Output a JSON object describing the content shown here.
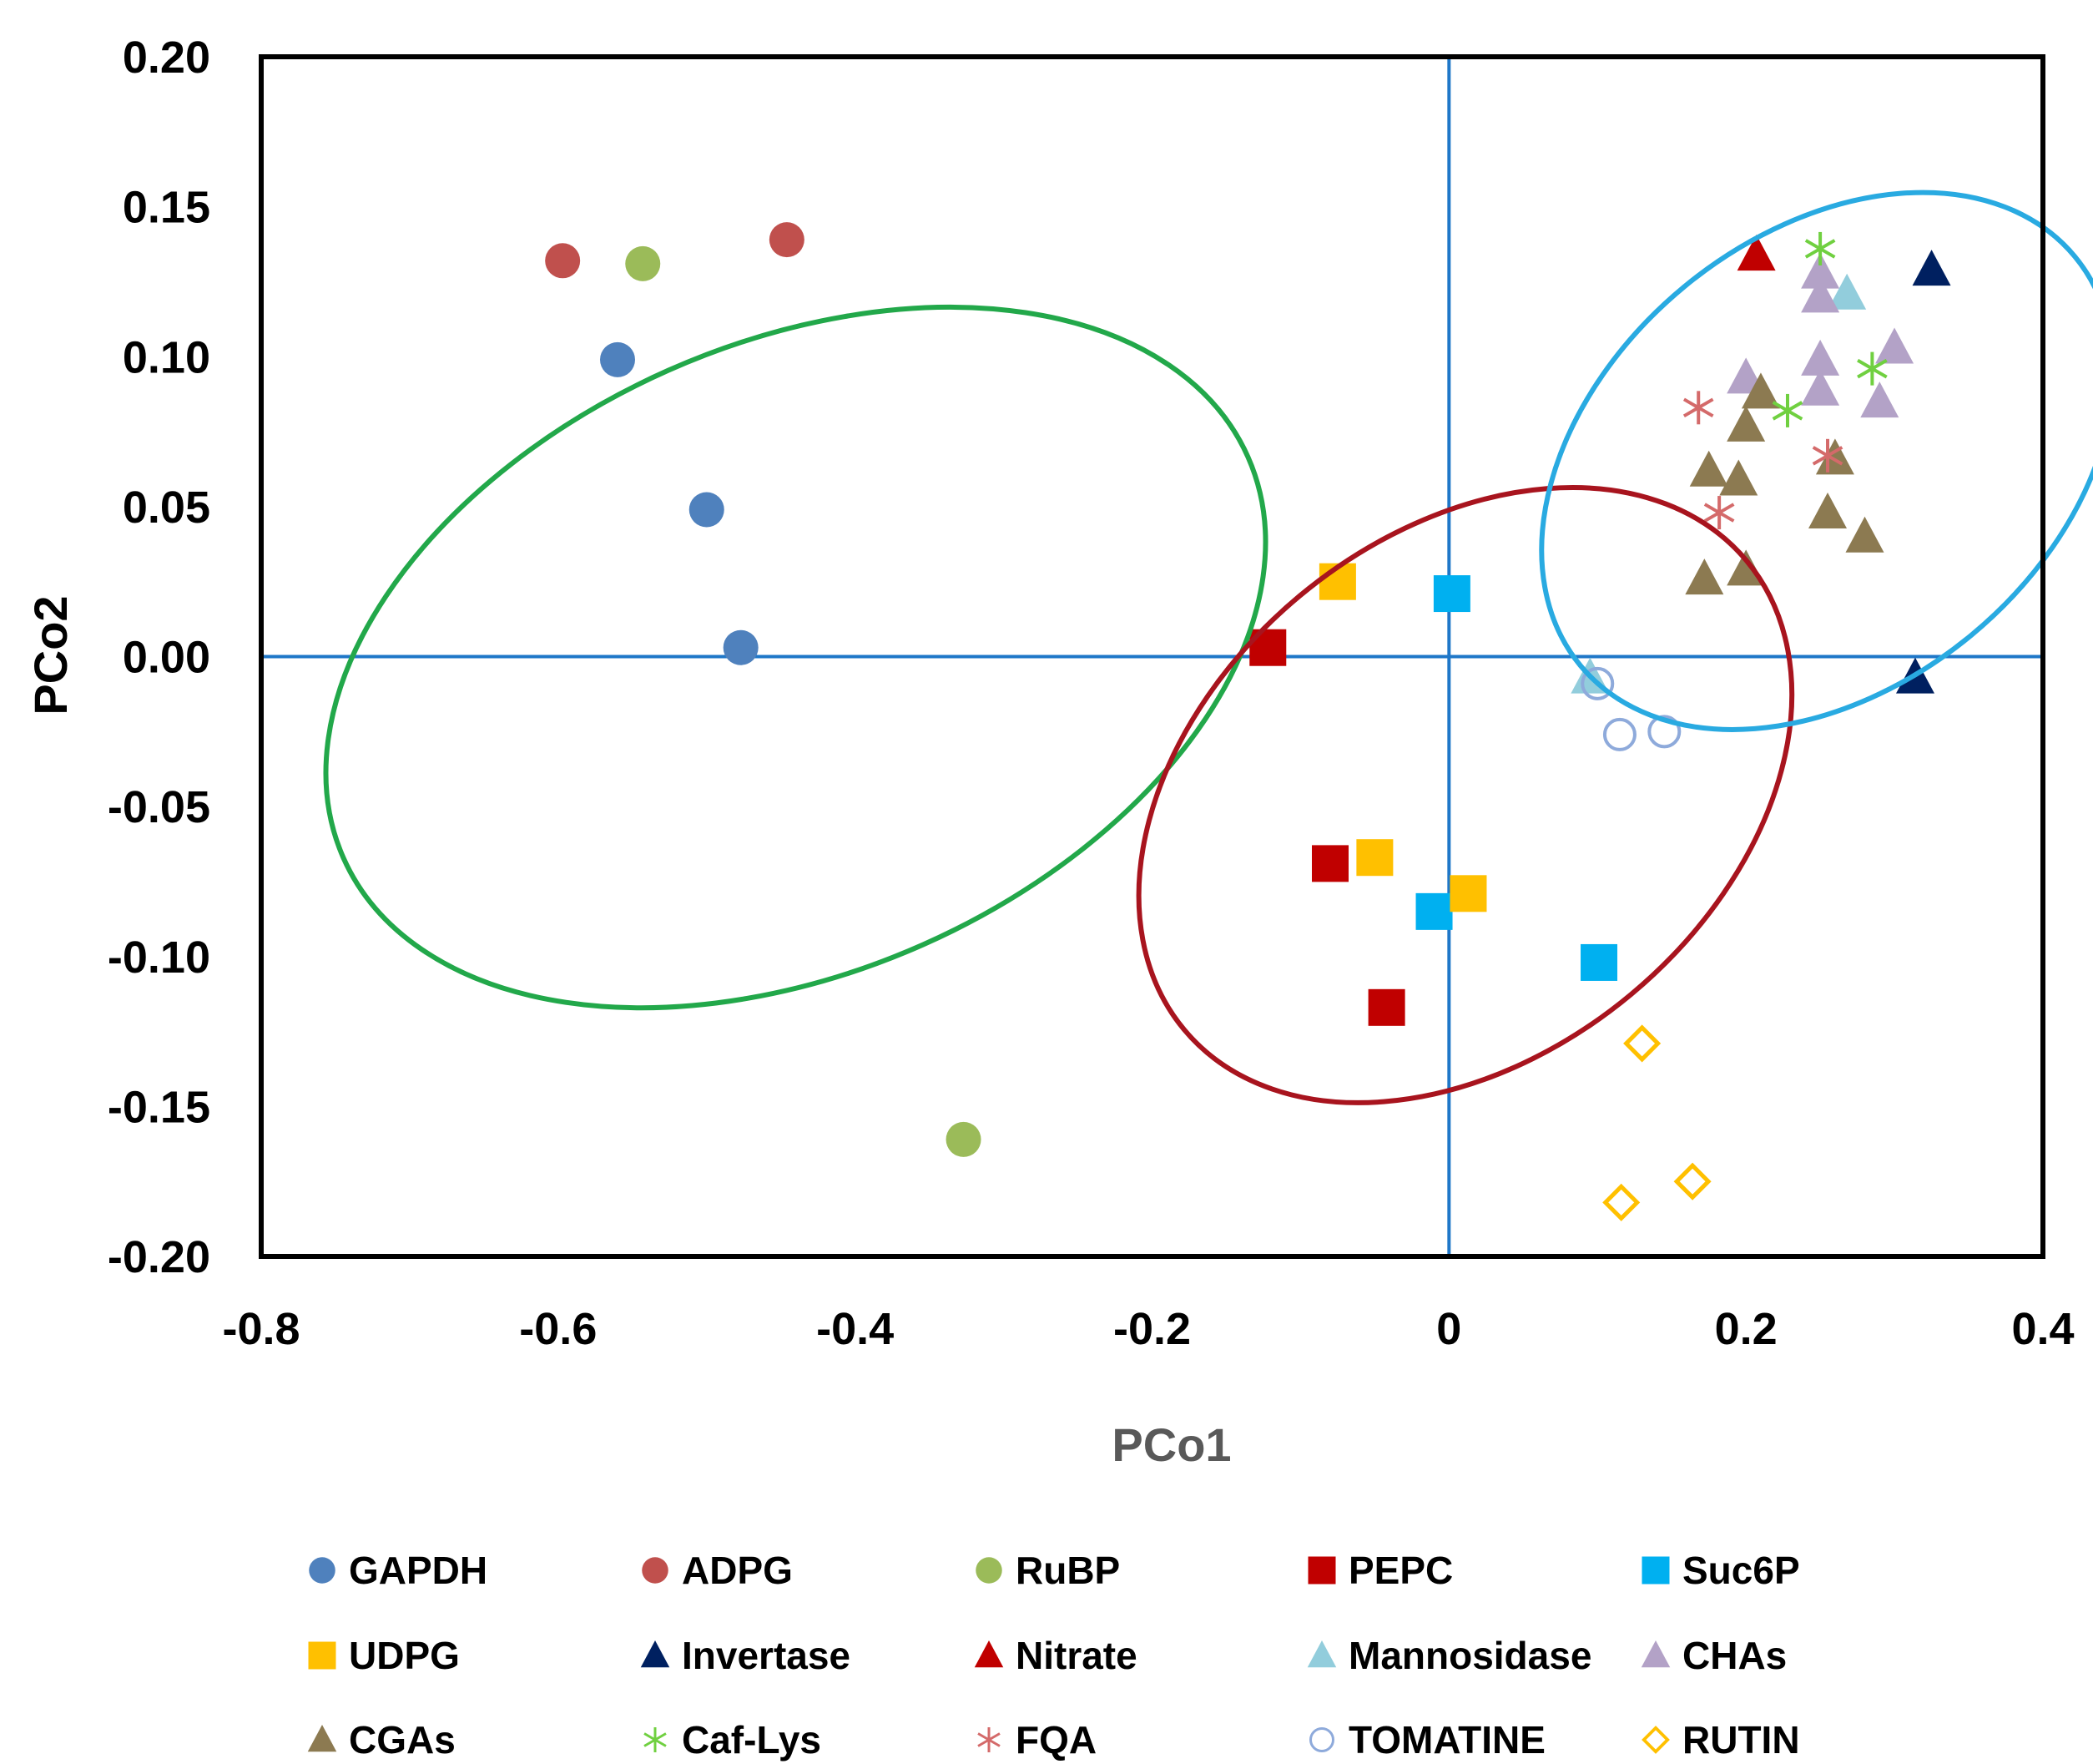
{
  "chart_data": {
    "type": "scatter",
    "title": "",
    "xlabel": "PCo1",
    "ylabel": "PCo2",
    "xlim": [
      -0.8,
      0.4
    ],
    "ylim": [
      -0.2,
      0.2
    ],
    "xticks": [
      -0.8,
      -0.6,
      -0.4,
      -0.2,
      0,
      0.2,
      0.4
    ],
    "yticks": [
      0.2,
      0.15,
      0.1,
      0.05,
      0,
      -0.05,
      -0.1,
      -0.15,
      -0.2
    ],
    "xtick_labels": [
      "-0.8",
      "-0.6",
      "-0.4",
      "-0.2",
      "0",
      "0.2",
      "0.4"
    ],
    "ytick_labels": [
      "0.20",
      "0.15",
      "0.10",
      "0.05",
      "0.00",
      "-0.05",
      "-0.10",
      "-0.15",
      "-0.20"
    ],
    "reference_lines": {
      "x": 0,
      "y": 0,
      "color": "#1f77c8"
    },
    "series": [
      {
        "name": "GAPDH",
        "marker": "circle",
        "color": "#4f81bd",
        "points": [
          [
            -0.56,
            0.099
          ],
          [
            -0.5,
            0.049
          ],
          [
            -0.477,
            0.003
          ]
        ]
      },
      {
        "name": "ADPG",
        "marker": "circle",
        "color": "#c0504d",
        "points": [
          [
            -0.597,
            0.132
          ],
          [
            -0.446,
            0.139
          ]
        ]
      },
      {
        "name": "RuBP",
        "marker": "circle",
        "color": "#9bbb59",
        "points": [
          [
            -0.543,
            0.131
          ],
          [
            -0.327,
            -0.161
          ]
        ]
      },
      {
        "name": "PEPC",
        "marker": "square",
        "color": "#c00000",
        "points": [
          [
            -0.122,
            0.003
          ],
          [
            -0.08,
            -0.069
          ],
          [
            -0.042,
            -0.117
          ]
        ]
      },
      {
        "name": "Suc6P",
        "marker": "square",
        "color": "#00b0f0",
        "points": [
          [
            0.002,
            0.021
          ],
          [
            -0.01,
            -0.085
          ],
          [
            0.101,
            -0.102
          ]
        ]
      },
      {
        "name": "UDPG",
        "marker": "square",
        "color": "#ffc000",
        "points": [
          [
            -0.075,
            0.025
          ],
          [
            -0.05,
            -0.067
          ],
          [
            0.013,
            -0.079
          ]
        ]
      },
      {
        "name": "Invertase",
        "marker": "triangle",
        "color": "#002060",
        "points": [
          [
            0.325,
            0.129
          ],
          [
            0.314,
            -0.007
          ]
        ]
      },
      {
        "name": "Nitrate",
        "marker": "triangle",
        "color": "#c00000",
        "points": [
          [
            0.207,
            0.134
          ]
        ]
      },
      {
        "name": "Mannosidase",
        "marker": "triangle",
        "color": "#92cddc",
        "points": [
          [
            0.268,
            0.121
          ],
          [
            0.095,
            -0.007
          ]
        ]
      },
      {
        "name": "CHAs",
        "marker": "triangle",
        "color": "#b3a2c7",
        "points": [
          [
            0.25,
            0.128
          ],
          [
            0.25,
            0.12
          ],
          [
            0.2,
            0.093
          ],
          [
            0.25,
            0.099
          ],
          [
            0.25,
            0.089
          ],
          [
            0.3,
            0.103
          ],
          [
            0.29,
            0.085
          ]
        ]
      },
      {
        "name": "CGAs",
        "marker": "triangle",
        "color": "#8c7a51",
        "points": [
          [
            0.21,
            0.088
          ],
          [
            0.2,
            0.077
          ],
          [
            0.175,
            0.062
          ],
          [
            0.195,
            0.059
          ],
          [
            0.26,
            0.066
          ],
          [
            0.255,
            0.048
          ],
          [
            0.28,
            0.04
          ],
          [
            0.172,
            0.026
          ],
          [
            0.2,
            0.029
          ]
        ]
      },
      {
        "name": "Caf-Lys",
        "marker": "asterisk",
        "color": "#70d040",
        "points": [
          [
            0.25,
            0.136
          ],
          [
            0.285,
            0.096
          ],
          [
            0.228,
            0.082
          ]
        ]
      },
      {
        "name": "FQA",
        "marker": "asterisk",
        "color": "#d46a6a",
        "points": [
          [
            0.168,
            0.083
          ],
          [
            0.255,
            0.067
          ],
          [
            0.182,
            0.048
          ]
        ]
      },
      {
        "name": "TOMATINE",
        "marker": "open-circle",
        "color": "#8eaadb",
        "points": [
          [
            0.1,
            -0.009
          ],
          [
            0.115,
            -0.026
          ],
          [
            0.145,
            -0.025
          ]
        ]
      },
      {
        "name": "RUTIN",
        "marker": "open-diamond",
        "color": "#ffc000",
        "points": [
          [
            0.13,
            -0.129
          ],
          [
            0.164,
            -0.175
          ],
          [
            0.116,
            -0.182
          ]
        ]
      }
    ],
    "ellipses": [
      {
        "name": "green-cluster",
        "color": "#22a84a",
        "cx": -0.44,
        "cy": -0.0003,
        "rx": 0.2115,
        "ry": 0.165,
        "angle": 66.1
      },
      {
        "name": "red-cluster",
        "color": "#a8141e",
        "cx": 0.011,
        "cy": -0.0462,
        "rx": 0.1745,
        "ry": 0.1221,
        "angle": 50.2
      },
      {
        "name": "blue-cluster",
        "color": "#29aae1",
        "cx": 0.255,
        "cy": 0.0652,
        "rx": 0.152,
        "ry": 0.107,
        "angle": 50.4
      }
    ],
    "legend_position": "bottom"
  }
}
